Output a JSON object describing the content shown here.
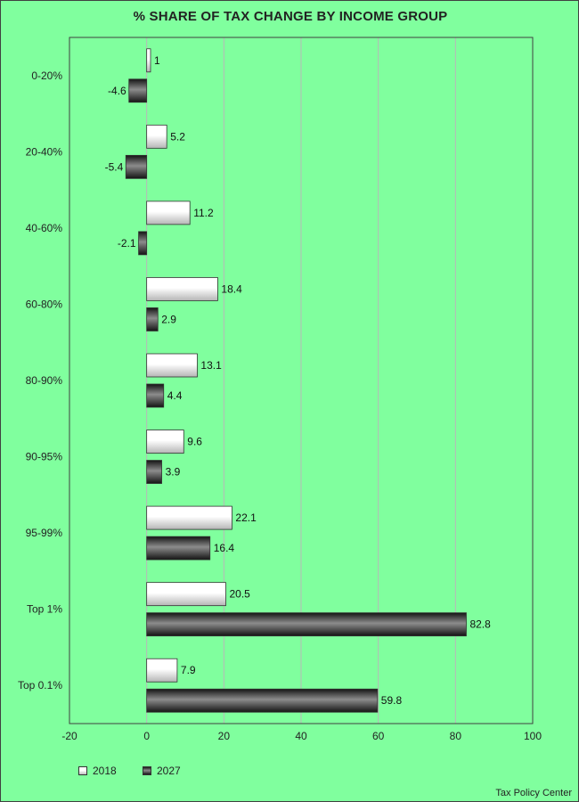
{
  "chart_data": {
    "type": "bar",
    "orientation": "horizontal",
    "title": "% SHARE OF TAX CHANGE BY INCOME GROUP",
    "categories": [
      "0-20%",
      "20-40%",
      "40-60%",
      "60-80%",
      "80-90%",
      "90-95%",
      "95-99%",
      "Top 1%",
      "Top 0.1%"
    ],
    "series": [
      {
        "name": "2018",
        "color": "#ffffff",
        "values": [
          1,
          5.2,
          11.2,
          18.4,
          13.1,
          9.6,
          22.1,
          20.5,
          7.9
        ]
      },
      {
        "name": "2027",
        "color": "#1a1a1a",
        "values": [
          -4.6,
          -5.4,
          -2.1,
          2.9,
          4.4,
          3.9,
          16.4,
          82.8,
          59.8
        ]
      }
    ],
    "xlim": [
      -20,
      100
    ],
    "xticks": [
      "-20",
      "0",
      "20",
      "40",
      "60",
      "80",
      "100"
    ],
    "grid": "vertical",
    "legend": "bottom-left",
    "background": "#80ff9e",
    "source": "Tax Policy Center"
  }
}
